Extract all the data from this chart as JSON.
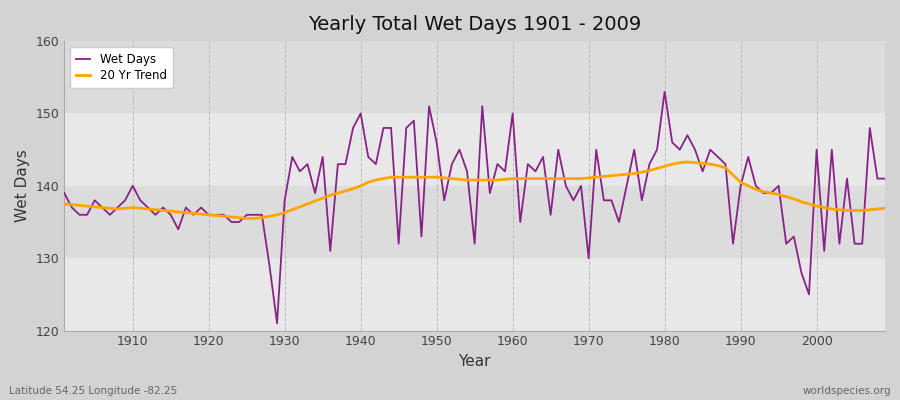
{
  "title": "Yearly Total Wet Days 1901 - 2009",
  "xlabel": "Year",
  "ylabel": "Wet Days",
  "bottom_left_label": "Latitude 54.25 Longitude -82.25",
  "bottom_right_label": "worldspecies.org",
  "ylim": [
    120,
    160
  ],
  "xlim": [
    1901,
    2009
  ],
  "yticks": [
    120,
    130,
    140,
    150,
    160
  ],
  "xticks": [
    1910,
    1920,
    1930,
    1940,
    1950,
    1960,
    1970,
    1980,
    1990,
    2000
  ],
  "wet_days_color": "#882288",
  "trend_color": "#FFA500",
  "background_color": "#DCDCDC",
  "plot_bg_color": "#E8E8E8",
  "grid_color": "#FFFFFF",
  "band_color_light": "#EBEBEB",
  "band_color_dark": "#DEDEDE",
  "years": [
    1901,
    1902,
    1903,
    1904,
    1905,
    1906,
    1907,
    1908,
    1909,
    1910,
    1911,
    1912,
    1913,
    1914,
    1915,
    1916,
    1917,
    1918,
    1919,
    1920,
    1921,
    1922,
    1923,
    1924,
    1925,
    1926,
    1927,
    1928,
    1929,
    1930,
    1931,
    1932,
    1933,
    1934,
    1935,
    1936,
    1937,
    1938,
    1939,
    1940,
    1941,
    1942,
    1943,
    1944,
    1945,
    1946,
    1947,
    1948,
    1949,
    1950,
    1951,
    1952,
    1953,
    1954,
    1955,
    1956,
    1957,
    1958,
    1959,
    1960,
    1961,
    1962,
    1963,
    1964,
    1965,
    1966,
    1967,
    1968,
    1969,
    1970,
    1971,
    1972,
    1973,
    1974,
    1975,
    1976,
    1977,
    1978,
    1979,
    1980,
    1981,
    1982,
    1983,
    1984,
    1985,
    1986,
    1987,
    1988,
    1989,
    1990,
    1991,
    1992,
    1993,
    1994,
    1995,
    1996,
    1997,
    1998,
    1999,
    2000,
    2001,
    2002,
    2003,
    2004,
    2005,
    2006,
    2007,
    2008,
    2009
  ],
  "wet_days": [
    139,
    137,
    136,
    136,
    138,
    137,
    136,
    137,
    138,
    140,
    138,
    137,
    136,
    137,
    136,
    134,
    137,
    136,
    137,
    136,
    136,
    136,
    135,
    135,
    136,
    136,
    136,
    129,
    121,
    138,
    144,
    142,
    143,
    139,
    144,
    131,
    143,
    143,
    148,
    150,
    144,
    143,
    148,
    148,
    132,
    148,
    149,
    133,
    151,
    146,
    138,
    143,
    145,
    142,
    132,
    151,
    139,
    143,
    142,
    150,
    135,
    143,
    142,
    144,
    136,
    145,
    140,
    138,
    140,
    130,
    145,
    138,
    138,
    135,
    140,
    145,
    138,
    143,
    145,
    153,
    146,
    145,
    147,
    145,
    142,
    145,
    144,
    143,
    132,
    140,
    144,
    140,
    139,
    139,
    140,
    132,
    133,
    128,
    125,
    145,
    131,
    145,
    132,
    141,
    132,
    132,
    148,
    141,
    141
  ],
  "trend_years": [
    1901,
    1902,
    1903,
    1904,
    1905,
    1906,
    1907,
    1908,
    1909,
    1910,
    1911,
    1912,
    1913,
    1914,
    1915,
    1916,
    1917,
    1918,
    1919,
    1920,
    1921,
    1922,
    1923,
    1924,
    1925,
    1926,
    1927,
    1928,
    1929,
    1930,
    1931,
    1932,
    1933,
    1934,
    1935,
    1936,
    1937,
    1938,
    1939,
    1940,
    1941,
    1942,
    1943,
    1944,
    1945,
    1946,
    1947,
    1948,
    1949,
    1950,
    1951,
    1952,
    1953,
    1954,
    1955,
    1956,
    1957,
    1958,
    1959,
    1960,
    1961,
    1962,
    1963,
    1964,
    1965,
    1966,
    1967,
    1968,
    1969,
    1970,
    1971,
    1972,
    1973,
    1974,
    1975,
    1976,
    1977,
    1978,
    1979,
    1980,
    1981,
    1982,
    1983,
    1984,
    1985,
    1986,
    1987,
    1988,
    1989,
    1990,
    1991,
    1992,
    1993,
    1994,
    1995,
    1996,
    1997,
    1998,
    1999,
    2000,
    2001,
    2002,
    2003,
    2004,
    2005,
    2006,
    2007,
    2008,
    2009
  ],
  "trend_values": [
    137.5,
    137.4,
    137.3,
    137.2,
    137.1,
    137.0,
    136.9,
    136.8,
    136.9,
    137.0,
    136.9,
    136.8,
    136.7,
    136.6,
    136.5,
    136.4,
    136.3,
    136.2,
    136.1,
    136.0,
    135.9,
    135.8,
    135.7,
    135.6,
    135.5,
    135.5,
    135.6,
    135.8,
    136.0,
    136.3,
    136.7,
    137.1,
    137.5,
    137.9,
    138.3,
    138.7,
    139.0,
    139.3,
    139.6,
    140.0,
    140.5,
    140.8,
    141.0,
    141.2,
    141.2,
    141.2,
    141.2,
    141.2,
    141.2,
    141.2,
    141.1,
    141.0,
    140.9,
    140.8,
    140.8,
    140.8,
    140.8,
    140.8,
    140.9,
    141.0,
    141.0,
    141.0,
    141.0,
    141.0,
    141.0,
    141.0,
    141.0,
    141.0,
    141.0,
    141.1,
    141.2,
    141.3,
    141.4,
    141.5,
    141.6,
    141.7,
    141.9,
    142.1,
    142.4,
    142.7,
    143.0,
    143.2,
    143.3,
    143.2,
    143.1,
    143.0,
    142.8,
    142.5,
    141.5,
    140.5,
    140.0,
    139.5,
    139.2,
    139.0,
    138.8,
    138.5,
    138.2,
    137.8,
    137.5,
    137.2,
    137.0,
    136.8,
    136.7,
    136.6,
    136.6,
    136.6,
    136.7,
    136.8,
    136.9
  ]
}
